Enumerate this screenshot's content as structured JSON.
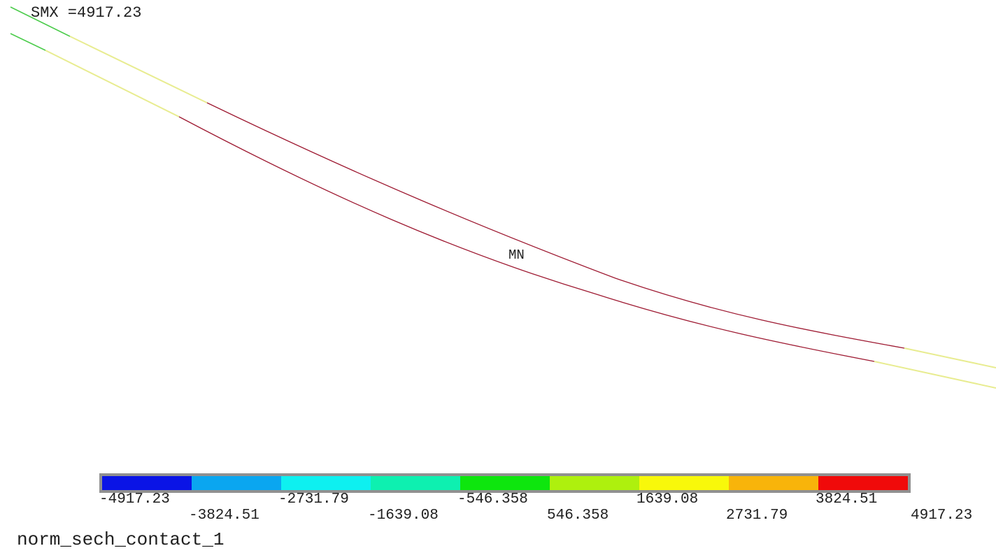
{
  "header": {
    "smx_label": "SMX =4917.23"
  },
  "plot": {
    "min_marker": "MN",
    "title": "norm_sech_contact_1"
  },
  "legend": {
    "colors": [
      "#0a14e6",
      "#0aa6f0",
      "#0ef0f0",
      "#0ef0b0",
      "#0ee60e",
      "#aef00e",
      "#f8f80a",
      "#f8b40a",
      "#f00a0a"
    ],
    "values": [
      "-4917.23",
      "-3824.51",
      "-2731.79",
      "-1639.08",
      "-546.358",
      "546.358",
      "1639.08",
      "2731.79",
      "3824.51",
      "4917.23"
    ]
  },
  "curves": {
    "stress_color": "#9e1a32",
    "green_color": "#4ccc4c",
    "yellow_color": "#e8ec90"
  }
}
